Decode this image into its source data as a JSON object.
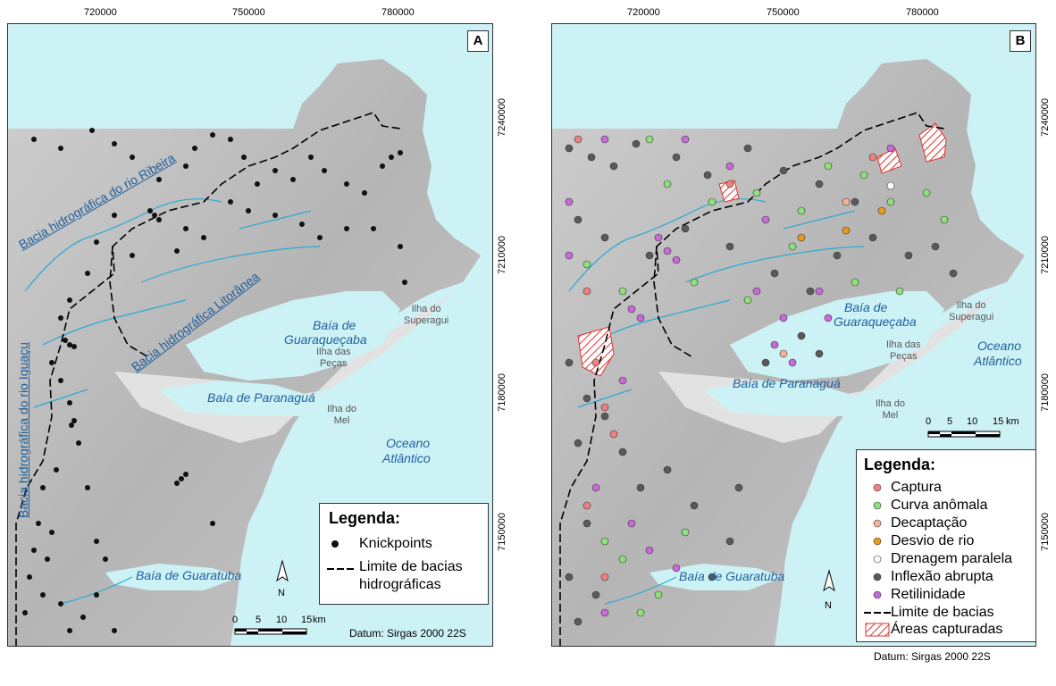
{
  "colors": {
    "sea": "#cdf2f6",
    "land_light": "#d8d8d8",
    "land_dark": "#9a9a9a",
    "river": "#2aa9d6",
    "captura": "#f08080",
    "curva": "#8ee07a",
    "decaptacao": "#f4b49a",
    "desvio": "#e89a1a",
    "drenagem": "#ffffff",
    "inflexao": "#5a5a5a",
    "retilinidade": "#c86ad8",
    "knickpoint": "#111111",
    "captured_area": "#e03030"
  },
  "top_coords": [
    "720000",
    "750000",
    "780000"
  ],
  "right_coords": [
    "7240000",
    "7210000",
    "7180000",
    "7150000"
  ],
  "panel_a": {
    "tag": "A",
    "basins": {
      "ribeira": "Bacia hidrográfica do rio Ribeira",
      "litoranea": "Bacia hidrográfica Litorânea",
      "iguacu": "Bacia hidrográfica do rio Iguaçu"
    },
    "places": {
      "guaraquecaba_1": "Baía de",
      "guaraquecaba_2": "Guaraqueçaba",
      "paranagua": "Baía de Paranaguá",
      "oceano_1": "Oceano",
      "oceano_2": "Atlântico",
      "guaratuba": "Baía de Guaratuba"
    },
    "islands": {
      "superagui_1": "Ilha do",
      "superagui_2": "Superagui",
      "pecas_1": "Ilha das",
      "pecas_2": "Peças",
      "mel_1": "Ilha do",
      "mel_2": "Mel"
    },
    "legend": {
      "title": "Legenda:",
      "knickpoints": "Knickpoints",
      "limite_1": "Limite de bacias",
      "limite_2": "hidrográficas"
    },
    "north": "N",
    "scale": [
      "0",
      "5",
      "10",
      "15",
      "km"
    ],
    "datum": "Datum: Sirgas 2000 22S"
  },
  "panel_b": {
    "tag": "B",
    "places": {
      "guaraquecaba_1": "Baía de",
      "guaraquecaba_2": "Guaraqueçaba",
      "paranagua": "Baía de Paranaguá",
      "oceano_1": "Oceano",
      "oceano_2": "Atlântico",
      "guaratuba": "Baía de Guaratuba"
    },
    "islands": {
      "superagui_1": "Ilha do",
      "superagui_2": "Superagui",
      "pecas_1": "Ilha das",
      "pecas_2": "Peças",
      "mel_1": "Ilha do",
      "mel_2": "Mel"
    },
    "legend": {
      "title": "Legenda:",
      "items": [
        "Captura",
        "Curva anômala",
        "Decaptação",
        "Desvio de rio",
        "Drenagem paralela",
        "Inflexão abrupta",
        "Retilinidade"
      ],
      "limite": "Limite de bacias",
      "areas": "Áreas capturadas"
    },
    "north": "N",
    "scale": [
      "0",
      "5",
      "10",
      "15",
      "km"
    ],
    "datum": "Datum: Sirgas 2000 22S"
  }
}
